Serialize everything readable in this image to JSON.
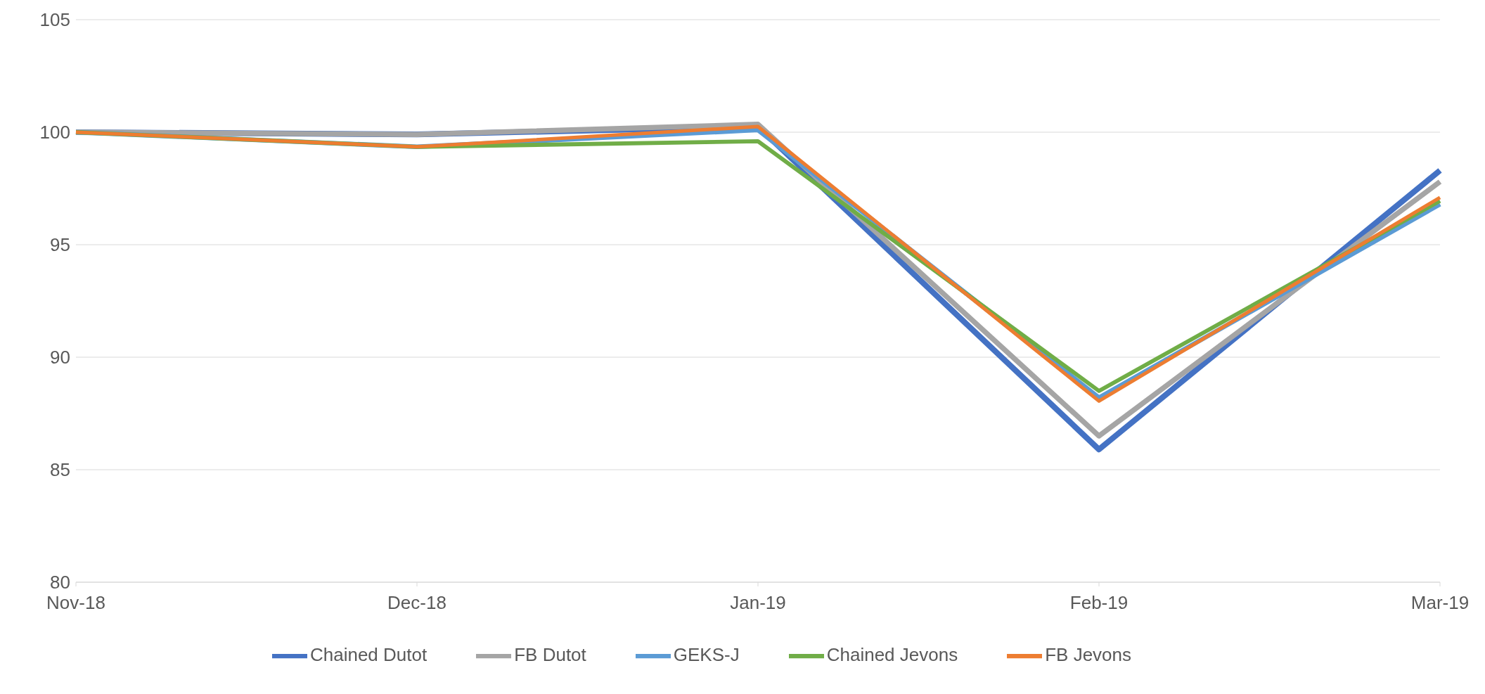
{
  "chart_data": {
    "type": "line",
    "categories": [
      "Nov-18",
      "Dec-18",
      "Jan-19",
      "Feb-19",
      "Mar-19"
    ],
    "series": [
      {
        "name": "Chained Dutot",
        "color": "#4472c4",
        "values": [
          100,
          99.9,
          100.25,
          85.9,
          98.3
        ]
      },
      {
        "name": "FB Dutot",
        "color": "#a5a5a5",
        "values": [
          100,
          99.9,
          100.35,
          86.5,
          97.8
        ]
      },
      {
        "name": "GEKS-J",
        "color": "#5b9bd5",
        "values": [
          100,
          99.35,
          100.1,
          88.2,
          96.8
        ]
      },
      {
        "name": "Chained Jevons",
        "color": "#70ad47",
        "values": [
          100,
          99.35,
          99.6,
          88.5,
          96.95
        ]
      },
      {
        "name": "FB Jevons",
        "color": "#ed7d31",
        "values": [
          100,
          99.35,
          100.25,
          88.05,
          97.1
        ]
      }
    ],
    "ylim": [
      80,
      105
    ],
    "yticks": [
      80,
      85,
      90,
      95,
      100,
      105
    ],
    "grid": "y",
    "legend": "bottom",
    "marker": "none",
    "line_style": "solid"
  }
}
